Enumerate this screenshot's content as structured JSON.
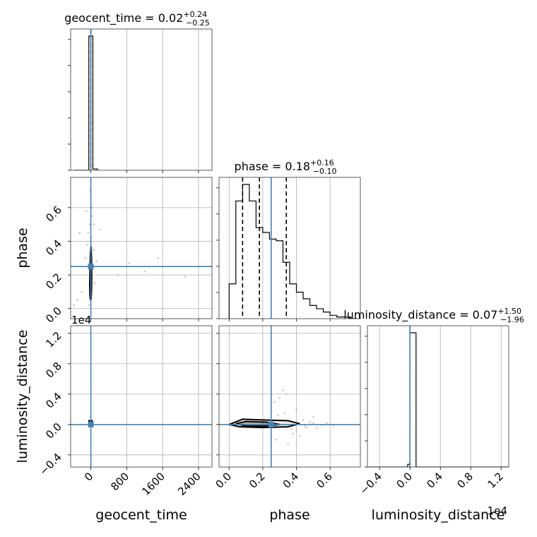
{
  "chart_data": {
    "type": "corner",
    "parameters": [
      "geocent_time",
      "phase",
      "luminosity_distance"
    ],
    "truths": {
      "geocent_time": 0,
      "phase": 0.25,
      "luminosity_distance": 0
    },
    "truth_color": "#4682b4",
    "diagonal_titles": [
      {
        "name": "geocent_time",
        "value": "0.02",
        "plus": "+0.24",
        "minus": "−0.25"
      },
      {
        "name": "phase",
        "value": "0.18",
        "plus": "+0.16",
        "minus": "−0.10"
      },
      {
        "name": "luminosity_distance",
        "value": "0.07",
        "plus": "+1.50",
        "minus": "−1.96"
      }
    ],
    "axes": {
      "geocent_time": {
        "label": "geocent_time",
        "range": [
          -450,
          2700
        ],
        "ticks": [
          0,
          800,
          1600,
          2400
        ],
        "tick_labels": [
          "0",
          "800",
          "1600",
          "2400"
        ]
      },
      "phase": {
        "label": "phase",
        "range": [
          -0.06,
          0.78
        ],
        "ticks": [
          0.0,
          0.2,
          0.4,
          0.6
        ],
        "tick_labels": [
          "0.0",
          "0.2",
          "0.4",
          "0.6"
        ]
      },
      "luminosity_distance": {
        "label": "luminosity_distance",
        "range": [
          -0.56,
          1.3
        ],
        "ticks": [
          -0.4,
          0.0,
          0.4,
          0.8,
          1.2
        ],
        "tick_labels": [
          "−0.4",
          "0.0",
          "0.4",
          "0.8",
          "1.2"
        ],
        "offset_text": "1e4"
      }
    },
    "histograms": {
      "geocent_time": {
        "bins": [
          -375,
          -45,
          45,
          150
        ],
        "heights": [
          0,
          0.99,
          0.01
        ],
        "quantiles": [
          0.02
        ]
      },
      "phase": {
        "bins": [
          0.0,
          0.04,
          0.08,
          0.12,
          0.16,
          0.2,
          0.24,
          0.28,
          0.32,
          0.36,
          0.4,
          0.44,
          0.48,
          0.52,
          0.56,
          0.6,
          0.64,
          0.68,
          0.72,
          0.76
        ],
        "heights": [
          0.21,
          0.71,
          0.81,
          0.71,
          0.55,
          0.52,
          0.48,
          0.47,
          0.34,
          0.21,
          0.16,
          0.12,
          0.08,
          0.06,
          0.04,
          0.02,
          0.01,
          0.01,
          0.0
        ],
        "quantiles": [
          0.08,
          0.18,
          0.34
        ]
      },
      "luminosity_distance": {
        "bins": [
          -0.56,
          -0.03,
          0.0,
          0.08,
          1.3
        ],
        "heights": [
          0,
          0.02,
          0.99,
          0
        ],
        "quantiles": [
          0.0
        ]
      }
    },
    "contours": {
      "geocent_time|phase": [
        {
          "x": [
            -10,
            5,
            15,
            20,
            15,
            5,
            -10,
            -20,
            -25,
            -20,
            -10
          ],
          "y": [
            0.05,
            0.06,
            0.1,
            0.2,
            0.3,
            0.37,
            0.33,
            0.22,
            0.14,
            0.08,
            0.05
          ]
        },
        {
          "x": [
            -6,
            4,
            8,
            9,
            6,
            -2,
            -8,
            -12,
            -12,
            -6
          ],
          "y": [
            0.08,
            0.09,
            0.14,
            0.22,
            0.3,
            0.33,
            0.27,
            0.19,
            0.12,
            0.08
          ]
        }
      ],
      "geocent_time|luminosity_distance": [
        {
          "x": [
            -40,
            30,
            30,
            -40,
            -40
          ],
          "y": [
            -0.02,
            -0.02,
            0.05,
            0.05,
            -0.02
          ]
        }
      ],
      "phase|luminosity_distance": [
        {
          "x": [
            0.0,
            0.08,
            0.2,
            0.35,
            0.42,
            0.35,
            0.2,
            0.06,
            0.0
          ],
          "y": [
            0.0,
            0.07,
            0.06,
            0.05,
            0.01,
            -0.03,
            -0.04,
            -0.03,
            0.0
          ]
        },
        {
          "x": [
            0.04,
            0.1,
            0.22,
            0.3,
            0.22,
            0.1,
            0.04
          ],
          "y": [
            0.01,
            0.04,
            0.03,
            0.0,
            -0.02,
            -0.02,
            0.01
          ]
        }
      ]
    },
    "samples": {
      "geocent_time|phase": [
        [
          -60,
          0.45
        ],
        [
          20,
          0.6
        ],
        [
          -30,
          0.5
        ],
        [
          40,
          0.55
        ],
        [
          -15,
          0.4
        ],
        [
          10,
          0.42
        ],
        [
          0,
          0.65
        ],
        [
          -120,
          0.3
        ],
        [
          90,
          0.15
        ],
        [
          -200,
          0.1
        ],
        [
          -300,
          0.05
        ],
        [
          -380,
          0.02
        ],
        [
          130,
          0.28
        ],
        [
          -80,
          0.38
        ],
        [
          60,
          0.35
        ],
        [
          -10,
          0.7
        ],
        [
          5,
          0.0
        ],
        [
          -40,
          0.02
        ],
        [
          30,
          0.06
        ],
        [
          600,
          0.2
        ],
        [
          850,
          0.27
        ],
        [
          1200,
          0.22
        ],
        [
          1500,
          0.3
        ],
        [
          2100,
          0.19
        ],
        [
          -250,
          0.45
        ],
        [
          200,
          0.47
        ],
        [
          -100,
          0.58
        ],
        [
          70,
          0.5
        ]
      ],
      "phase|luminosity_distance": [
        [
          0.5,
          0.02
        ],
        [
          0.55,
          -0.01
        ],
        [
          0.6,
          0.0
        ],
        [
          0.45,
          -0.02
        ],
        [
          0.48,
          0.03
        ],
        [
          0.4,
          -0.08
        ],
        [
          0.42,
          -0.15
        ],
        [
          0.28,
          -0.2
        ],
        [
          0.35,
          -0.25
        ],
        [
          0.3,
          0.35
        ],
        [
          0.34,
          0.4
        ],
        [
          0.32,
          0.45
        ],
        [
          0.27,
          0.3
        ],
        [
          0.4,
          0.2
        ],
        [
          0.5,
          0.1
        ],
        [
          0.52,
          -0.05
        ],
        [
          0.44,
          0.06
        ],
        [
          0.38,
          -0.12
        ],
        [
          0.46,
          -0.04
        ],
        [
          0.58,
          0.02
        ],
        [
          0.62,
          -0.02
        ],
        [
          0.33,
          0.15
        ],
        [
          0.37,
          -0.06
        ],
        [
          0.29,
          0.12
        ]
      ]
    }
  }
}
